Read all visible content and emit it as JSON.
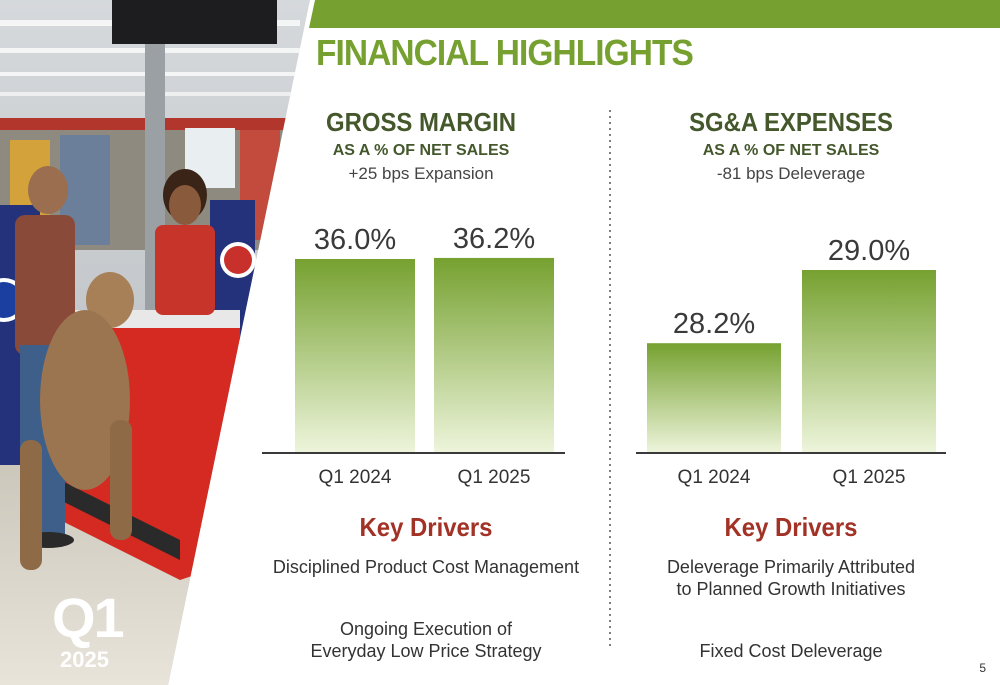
{
  "slide": {
    "title": "FINANCIAL HIGHLIGHTS",
    "quarter": "Q1",
    "year": "2025",
    "page_number": "5",
    "accent_color": "#76a130",
    "driver_heading_color": "#a33226"
  },
  "left_panel": {
    "title": "GROSS MARGIN",
    "subtitle": "AS A % OF NET SALES",
    "note": "+25 bps Expansion",
    "drivers_heading": "Key Drivers",
    "drivers": [
      "Disciplined Product Cost Management",
      "Ongoing Execution of\nEveryday Low Price Strategy"
    ]
  },
  "right_panel": {
    "title": "SG&A EXPENSES",
    "subtitle": "AS A % OF NET SALES",
    "note": "-81 bps Deleverage",
    "drivers_heading": "Key Drivers",
    "drivers": [
      "Deleverage Primarily Attributed\nto Planned Growth Initiatives",
      "Fixed Cost Deleverage"
    ]
  },
  "chart_data": [
    {
      "type": "bar",
      "title": "GROSS MARGIN",
      "subtitle": "AS A % OF NET SALES",
      "categories": [
        "Q1 2024",
        "Q1 2025"
      ],
      "values": [
        36.0,
        36.2
      ],
      "data_labels": [
        "36.0%",
        "36.2%"
      ],
      "unit": "%",
      "annotation": "+25 bps Expansion",
      "grid": false,
      "legend": "none"
    },
    {
      "type": "bar",
      "title": "SG&A EXPENSES",
      "subtitle": "AS A % OF NET SALES",
      "categories": [
        "Q1 2024",
        "Q1 2025"
      ],
      "values": [
        28.2,
        29.0
      ],
      "data_labels": [
        "28.2%",
        "29.0%"
      ],
      "unit": "%",
      "annotation": "-81 bps Deleverage",
      "grid": false,
      "legend": "none"
    }
  ]
}
